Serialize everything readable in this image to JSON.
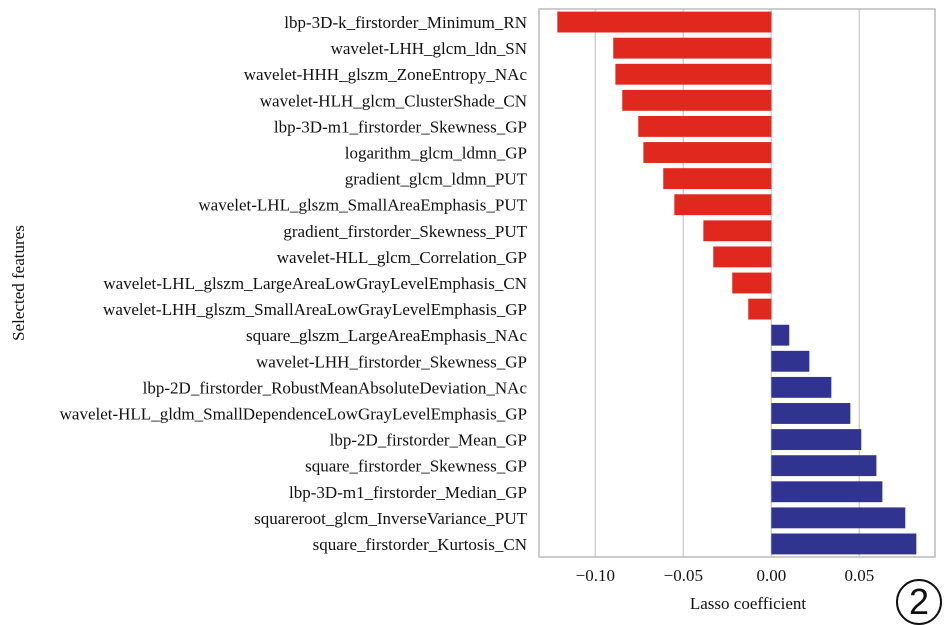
{
  "chart_data": {
    "type": "bar",
    "orientation": "horizontal",
    "title": "",
    "xlabel": "Lasso coefficient",
    "ylabel": "Selected features",
    "xlim": [
      -0.132,
      0.093
    ],
    "xticks": [
      -0.1,
      -0.05,
      0.0,
      0.05
    ],
    "xtick_labels": [
      "−0.10",
      "−0.05",
      "0.00",
      "0.05"
    ],
    "grid": "vertical",
    "colors": {
      "negative": "#e0281e",
      "positive": "#303390"
    },
    "categories": [
      "lbp-3D-k_firstorder_Minimum_RN",
      "wavelet-LHH_glcm_ldn_SN",
      "wavelet-HHH_glszm_ZoneEntropy_NAc",
      "wavelet-HLH_glcm_ClusterShade_CN",
      "lbp-3D-m1_firstorder_Skewness_GP",
      "logarithm_glcm_ldmn_GP",
      "gradient_glcm_ldmn_PUT",
      "wavelet-LHL_glszm_SmallAreaEmphasis_PUT",
      "gradient_firstorder_Skewness_PUT",
      "wavelet-HLL_glcm_Correlation_GP",
      "wavelet-LHL_glszm_LargeAreaLowGrayLevelEmphasis_CN",
      "wavelet-LHH_glszm_SmallAreaLowGrayLevelEmphasis_GP",
      "square_glszm_LargeAreaEmphasis_NAc",
      "wavelet-LHH_firstorder_Skewness_GP",
      "lbp-2D_firstorder_RobustMeanAbsoluteDeviation_NAc",
      "wavelet-HLL_gldm_SmallDependenceLowGrayLevelEmphasis_GP",
      "lbp-2D_firstorder_Mean_GP",
      "square_firstorder_Skewness_GP",
      "lbp-3D-m1_firstorder_Median_GP",
      "squareroot_glcm_InverseVariance_PUT",
      "square_firstorder_Kurtosis_CN"
    ],
    "values": [
      -0.1216,
      -0.0898,
      -0.0886,
      -0.0847,
      -0.0756,
      -0.0727,
      -0.0614,
      -0.0551,
      -0.0386,
      -0.033,
      -0.0222,
      -0.0131,
      0.0102,
      0.0216,
      0.0341,
      0.0449,
      0.0511,
      0.0597,
      0.0631,
      0.0761,
      0.0824
    ]
  },
  "annotation": "2"
}
